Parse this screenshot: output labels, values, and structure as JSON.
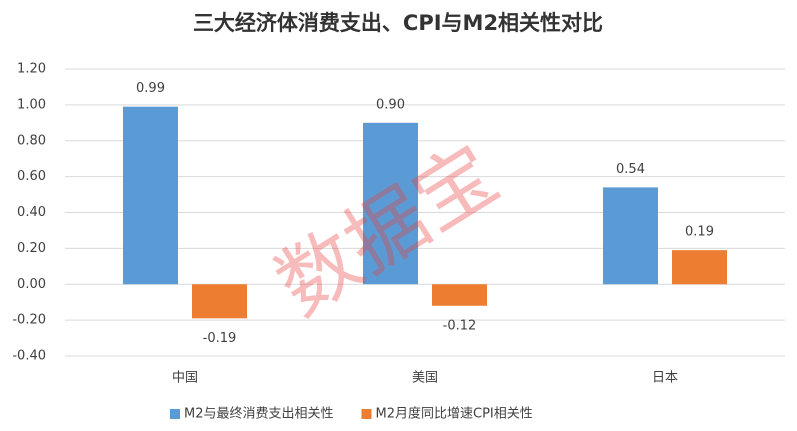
{
  "chart_data": {
    "type": "bar",
    "title": "三大经济体消费支出、CPI与M2相关性对比",
    "watermark": "数据宝",
    "categories": [
      "中国",
      "美国",
      "日本"
    ],
    "series": [
      {
        "name": "M2与最终消费支出相关性",
        "color": "#5b9bd5",
        "values": [
          0.99,
          0.9,
          0.54
        ],
        "value_labels": [
          "0.99",
          "0.90",
          "0.54"
        ]
      },
      {
        "name": "M2月度同比增速CPI相关性",
        "color": "#ed7d31",
        "values": [
          -0.19,
          -0.12,
          0.19
        ],
        "value_labels": [
          "-0.19",
          "-0.12",
          "0.19"
        ]
      }
    ],
    "ylim": [
      -0.4,
      1.2
    ],
    "yticks": [
      {
        "value": -0.4,
        "label": "-0.40"
      },
      {
        "value": -0.2,
        "label": "-0.20"
      },
      {
        "value": 0,
        "label": "0.00"
      },
      {
        "value": 0.2,
        "label": "0.20"
      },
      {
        "value": 0.4,
        "label": "0.40"
      },
      {
        "value": 0.6,
        "label": "0.60"
      },
      {
        "value": 0.8,
        "label": "0.80"
      },
      {
        "value": 1.0,
        "label": "1.00"
      },
      {
        "value": 1.2,
        "label": "1.20"
      }
    ],
    "grid": true,
    "legend": "bottom"
  }
}
